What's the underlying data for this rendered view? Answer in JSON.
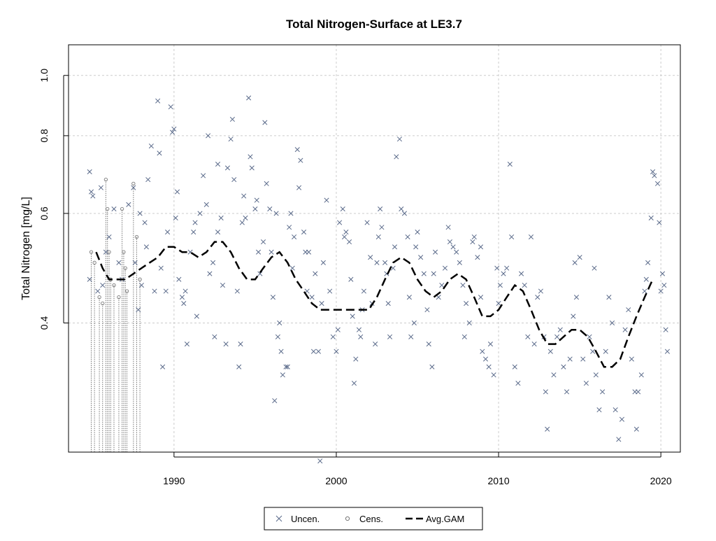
{
  "chart_data": {
    "type": "scatter",
    "title": "Total Nitrogen-Surface at LE3.7",
    "ylabel": "Total Nitrogen [mg/L]",
    "xlabel": "",
    "y_scale": "log",
    "xlim": [
      1983.5,
      2021.2
    ],
    "ylim": [
      0.248,
      1.12
    ],
    "x_ticks": [
      1990,
      2000,
      2010,
      2020
    ],
    "x_tick_labels": [
      "1990",
      "2000",
      "2010",
      "2020"
    ],
    "y_ticks": [
      0.4,
      0.6,
      0.8,
      1.0
    ],
    "y_tick_labels": [
      "0.4",
      "0.6",
      "0.8",
      "1.0"
    ],
    "grid": true,
    "legend_position": "bottom-center",
    "legend": [
      {
        "label": "Uncen.",
        "symbol": "x"
      },
      {
        "label": "Cens.",
        "symbol": "circle"
      },
      {
        "label": "Avg.GAM",
        "symbol": "dashed-line"
      }
    ],
    "colors": {
      "uncensored": "#5a6a8a",
      "censored": "#777777",
      "gam": "#000000",
      "grid": "#cccccc"
    },
    "series": [
      {
        "name": "Uncen.",
        "points": [
          [
            1984.8,
            0.7
          ],
          [
            1984.9,
            0.65
          ],
          [
            1985.0,
            0.64
          ],
          [
            1984.8,
            0.47
          ],
          [
            1985.3,
            0.45
          ],
          [
            1985.6,
            0.46
          ],
          [
            1985.8,
            0.52
          ],
          [
            1985.5,
            0.66
          ],
          [
            1986.0,
            0.55
          ],
          [
            1986.3,
            0.61
          ],
          [
            1986.6,
            0.5
          ],
          [
            1986.8,
            0.47
          ],
          [
            1987.2,
            0.62
          ],
          [
            1987.5,
            0.66
          ],
          [
            1987.8,
            0.42
          ],
          [
            1987.9,
            0.6
          ],
          [
            1988.0,
            0.46
          ],
          [
            1988.2,
            0.58
          ],
          [
            1988.4,
            0.68
          ],
          [
            1988.6,
            0.77
          ],
          [
            1988.8,
            0.45
          ],
          [
            1989.0,
            0.91
          ],
          [
            1989.1,
            0.75
          ],
          [
            1989.2,
            0.49
          ],
          [
            1989.3,
            0.34
          ],
          [
            1989.5,
            0.45
          ],
          [
            1989.6,
            0.56
          ],
          [
            1989.8,
            0.89
          ],
          [
            1989.9,
            0.81
          ],
          [
            1990.0,
            0.82
          ],
          [
            1990.1,
            0.59
          ],
          [
            1990.2,
            0.65
          ],
          [
            1990.3,
            0.47
          ],
          [
            1990.5,
            0.44
          ],
          [
            1990.6,
            0.43
          ],
          [
            1990.7,
            0.45
          ],
          [
            1990.8,
            0.37
          ],
          [
            1991.0,
            0.52
          ],
          [
            1991.2,
            0.56
          ],
          [
            1991.3,
            0.58
          ],
          [
            1991.4,
            0.41
          ],
          [
            1991.6,
            0.6
          ],
          [
            1991.8,
            0.69
          ],
          [
            1992.0,
            0.62
          ],
          [
            1992.1,
            0.8
          ],
          [
            1992.2,
            0.48
          ],
          [
            1992.4,
            0.5
          ],
          [
            1992.5,
            0.38
          ],
          [
            1992.7,
            0.56
          ],
          [
            1992.9,
            0.59
          ],
          [
            1993.0,
            0.46
          ],
          [
            1993.2,
            0.37
          ],
          [
            1993.3,
            0.71
          ],
          [
            1993.5,
            0.79
          ],
          [
            1993.6,
            0.85
          ],
          [
            1993.7,
            0.68
          ],
          [
            1993.9,
            0.45
          ],
          [
            1994.0,
            0.34
          ],
          [
            1994.1,
            0.37
          ],
          [
            1994.2,
            0.58
          ],
          [
            1994.4,
            0.59
          ],
          [
            1994.6,
            0.92
          ],
          [
            1994.7,
            0.74
          ],
          [
            1994.8,
            0.71
          ],
          [
            1995.0,
            0.61
          ],
          [
            1995.1,
            0.63
          ],
          [
            1995.2,
            0.52
          ],
          [
            1995.3,
            0.48
          ],
          [
            1995.5,
            0.54
          ],
          [
            1995.6,
            0.84
          ],
          [
            1995.7,
            0.67
          ],
          [
            1995.9,
            0.61
          ],
          [
            1996.0,
            0.52
          ],
          [
            1996.1,
            0.44
          ],
          [
            1996.2,
            0.3
          ],
          [
            1996.4,
            0.38
          ],
          [
            1996.5,
            0.4
          ],
          [
            1996.6,
            0.36
          ],
          [
            1996.7,
            0.33
          ],
          [
            1996.9,
            0.34
          ],
          [
            1997.0,
            0.34
          ],
          [
            1997.1,
            0.57
          ],
          [
            1997.2,
            0.6
          ],
          [
            1997.3,
            0.49
          ],
          [
            1997.4,
            0.55
          ],
          [
            1997.6,
            0.76
          ],
          [
            1997.7,
            0.66
          ],
          [
            1997.8,
            0.73
          ],
          [
            1998.0,
            0.56
          ],
          [
            1998.1,
            0.52
          ],
          [
            1998.2,
            0.45
          ],
          [
            1998.3,
            0.52
          ],
          [
            1998.5,
            0.44
          ],
          [
            1998.6,
            0.36
          ],
          [
            1998.7,
            0.48
          ],
          [
            1998.9,
            0.36
          ],
          [
            1999.0,
            0.24
          ],
          [
            1999.1,
            0.43
          ],
          [
            1999.2,
            0.5
          ],
          [
            1999.4,
            0.63
          ],
          [
            1999.6,
            0.45
          ],
          [
            1999.8,
            0.38
          ],
          [
            2000.0,
            0.36
          ],
          [
            2000.1,
            0.39
          ],
          [
            2000.2,
            0.58
          ],
          [
            2000.4,
            0.61
          ],
          [
            2000.5,
            0.55
          ],
          [
            2000.6,
            0.56
          ],
          [
            2000.8,
            0.54
          ],
          [
            2000.9,
            0.47
          ],
          [
            2001.0,
            0.41
          ],
          [
            2001.1,
            0.32
          ],
          [
            2001.2,
            0.35
          ],
          [
            2001.4,
            0.39
          ],
          [
            2001.5,
            0.38
          ],
          [
            2001.6,
            0.42
          ],
          [
            2001.7,
            0.45
          ],
          [
            2001.9,
            0.58
          ],
          [
            2002.1,
            0.51
          ],
          [
            2002.2,
            0.43
          ],
          [
            2002.4,
            0.37
          ],
          [
            2002.5,
            0.5
          ],
          [
            2002.6,
            0.55
          ],
          [
            2002.7,
            0.61
          ],
          [
            2002.8,
            0.57
          ],
          [
            2003.0,
            0.5
          ],
          [
            2003.1,
            0.48
          ],
          [
            2003.2,
            0.43
          ],
          [
            2003.3,
            0.38
          ],
          [
            2003.5,
            0.49
          ],
          [
            2003.6,
            0.53
          ],
          [
            2003.7,
            0.74
          ],
          [
            2003.9,
            0.79
          ],
          [
            2004.0,
            0.61
          ],
          [
            2004.2,
            0.6
          ],
          [
            2004.4,
            0.55
          ],
          [
            2004.5,
            0.44
          ],
          [
            2004.6,
            0.38
          ],
          [
            2004.8,
            0.4
          ],
          [
            2004.9,
            0.53
          ],
          [
            2005.0,
            0.56
          ],
          [
            2005.2,
            0.51
          ],
          [
            2005.4,
            0.48
          ],
          [
            2005.6,
            0.42
          ],
          [
            2005.7,
            0.37
          ],
          [
            2005.9,
            0.34
          ],
          [
            2006.0,
            0.48
          ],
          [
            2006.1,
            0.52
          ],
          [
            2006.3,
            0.44
          ],
          [
            2006.5,
            0.46
          ],
          [
            2006.7,
            0.49
          ],
          [
            2006.9,
            0.57
          ],
          [
            2007.0,
            0.54
          ],
          [
            2007.2,
            0.53
          ],
          [
            2007.4,
            0.52
          ],
          [
            2007.6,
            0.5
          ],
          [
            2007.8,
            0.46
          ],
          [
            2007.9,
            0.38
          ],
          [
            2008.0,
            0.43
          ],
          [
            2008.2,
            0.4
          ],
          [
            2008.4,
            0.54
          ],
          [
            2008.5,
            0.55
          ],
          [
            2008.7,
            0.51
          ],
          [
            2008.9,
            0.44
          ],
          [
            2009.0,
            0.36
          ],
          [
            2009.2,
            0.35
          ],
          [
            2009.4,
            0.34
          ],
          [
            2009.5,
            0.37
          ],
          [
            2009.7,
            0.33
          ],
          [
            2009.9,
            0.49
          ],
          [
            2010.0,
            0.43
          ],
          [
            2010.1,
            0.46
          ],
          [
            2010.3,
            0.48
          ],
          [
            2010.5,
            0.49
          ],
          [
            2010.7,
            0.72
          ],
          [
            2010.8,
            0.55
          ],
          [
            2011.0,
            0.34
          ],
          [
            2011.2,
            0.32
          ],
          [
            2011.4,
            0.48
          ],
          [
            2011.6,
            0.46
          ],
          [
            2011.8,
            0.38
          ],
          [
            2012.0,
            0.55
          ],
          [
            2012.2,
            0.37
          ],
          [
            2012.4,
            0.44
          ],
          [
            2012.6,
            0.45
          ],
          [
            2012.8,
            0.38
          ],
          [
            2012.9,
            0.31
          ],
          [
            2013.0,
            0.27
          ],
          [
            2013.2,
            0.36
          ],
          [
            2013.4,
            0.33
          ],
          [
            2013.6,
            0.38
          ],
          [
            2013.8,
            0.39
          ],
          [
            2014.0,
            0.34
          ],
          [
            2014.2,
            0.31
          ],
          [
            2014.4,
            0.35
          ],
          [
            2014.6,
            0.41
          ],
          [
            2014.8,
            0.44
          ],
          [
            2015.0,
            0.51
          ],
          [
            2015.2,
            0.35
          ],
          [
            2015.4,
            0.32
          ],
          [
            2015.6,
            0.38
          ],
          [
            2015.8,
            0.36
          ],
          [
            2016.0,
            0.33
          ],
          [
            2016.2,
            0.29
          ],
          [
            2016.4,
            0.31
          ],
          [
            2016.6,
            0.36
          ],
          [
            2016.8,
            0.44
          ],
          [
            2017.0,
            0.4
          ],
          [
            2017.2,
            0.29
          ],
          [
            2017.4,
            0.26
          ],
          [
            2017.6,
            0.28
          ],
          [
            2017.8,
            0.39
          ],
          [
            2018.0,
            0.42
          ],
          [
            2018.2,
            0.35
          ],
          [
            2018.4,
            0.31
          ],
          [
            2018.5,
            0.27
          ],
          [
            2018.6,
            0.31
          ],
          [
            2018.8,
            0.33
          ],
          [
            2019.0,
            0.45
          ],
          [
            2019.1,
            0.47
          ],
          [
            2019.2,
            0.5
          ],
          [
            2019.4,
            0.59
          ],
          [
            2019.5,
            0.7
          ],
          [
            2019.6,
            0.69
          ],
          [
            2019.8,
            0.67
          ],
          [
            2019.9,
            0.58
          ],
          [
            2020.0,
            0.45
          ],
          [
            2020.1,
            0.48
          ],
          [
            2020.2,
            0.46
          ],
          [
            2020.3,
            0.39
          ],
          [
            2020.4,
            0.36
          ],
          [
            1987.6,
            0.5
          ],
          [
            1988.3,
            0.53
          ],
          [
            1994.3,
            0.64
          ],
          [
            2014.7,
            0.5
          ],
          [
            2015.9,
            0.49
          ],
          [
            1992.7,
            0.72
          ],
          [
            1996.3,
            0.6
          ],
          [
            2008.9,
            0.53
          ]
        ]
      },
      {
        "name": "Cens.",
        "censored_points": [
          [
            1984.9,
            0.52
          ],
          [
            1985.1,
            0.5
          ],
          [
            1985.4,
            0.44
          ],
          [
            1985.6,
            0.43
          ],
          [
            1985.8,
            0.68
          ],
          [
            1985.9,
            0.61
          ],
          [
            1986.0,
            0.52
          ],
          [
            1986.1,
            0.47
          ],
          [
            1986.3,
            0.46
          ],
          [
            1986.6,
            0.44
          ],
          [
            1986.8,
            0.61
          ],
          [
            1986.9,
            0.52
          ],
          [
            1987.0,
            0.49
          ],
          [
            1987.1,
            0.45
          ],
          [
            1987.5,
            0.67
          ],
          [
            1987.7,
            0.55
          ],
          [
            1987.9,
            0.47
          ]
        ]
      },
      {
        "name": "Avg.GAM",
        "x": [
          1985.2,
          1985.6,
          1986.0,
          1986.5,
          1987.0,
          1987.5,
          1988.0,
          1988.5,
          1989.0,
          1989.5,
          1990.0,
          1990.5,
          1991.0,
          1991.5,
          1992.0,
          1992.5,
          1993.0,
          1993.5,
          1994.0,
          1994.5,
          1995.0,
          1995.5,
          1996.0,
          1996.5,
          1997.0,
          1997.5,
          1998.0,
          1998.5,
          1999.0,
          1999.5,
          2000.0,
          2000.5,
          2001.0,
          2001.5,
          2002.0,
          2002.5,
          2003.0,
          2003.5,
          2004.0,
          2004.5,
          2005.0,
          2005.5,
          2006.0,
          2006.5,
          2007.0,
          2007.5,
          2008.0,
          2008.5,
          2009.0,
          2009.5,
          2010.0,
          2010.5,
          2011.0,
          2011.5,
          2012.0,
          2012.5,
          2013.0,
          2013.5,
          2014.0,
          2014.5,
          2015.0,
          2015.5,
          2016.0,
          2016.5,
          2017.0,
          2017.5,
          2018.0,
          2018.5,
          2019.0,
          2019.5
        ],
        "y": [
          0.52,
          0.49,
          0.47,
          0.47,
          0.47,
          0.48,
          0.49,
          0.5,
          0.51,
          0.53,
          0.53,
          0.52,
          0.52,
          0.51,
          0.52,
          0.54,
          0.54,
          0.52,
          0.49,
          0.47,
          0.47,
          0.49,
          0.51,
          0.52,
          0.5,
          0.47,
          0.45,
          0.43,
          0.42,
          0.42,
          0.42,
          0.42,
          0.42,
          0.42,
          0.42,
          0.44,
          0.47,
          0.5,
          0.51,
          0.5,
          0.47,
          0.45,
          0.44,
          0.45,
          0.47,
          0.48,
          0.47,
          0.44,
          0.41,
          0.41,
          0.42,
          0.44,
          0.46,
          0.45,
          0.42,
          0.39,
          0.37,
          0.37,
          0.38,
          0.39,
          0.39,
          0.38,
          0.36,
          0.34,
          0.34,
          0.35,
          0.38,
          0.41,
          0.44,
          0.47
        ]
      }
    ]
  }
}
